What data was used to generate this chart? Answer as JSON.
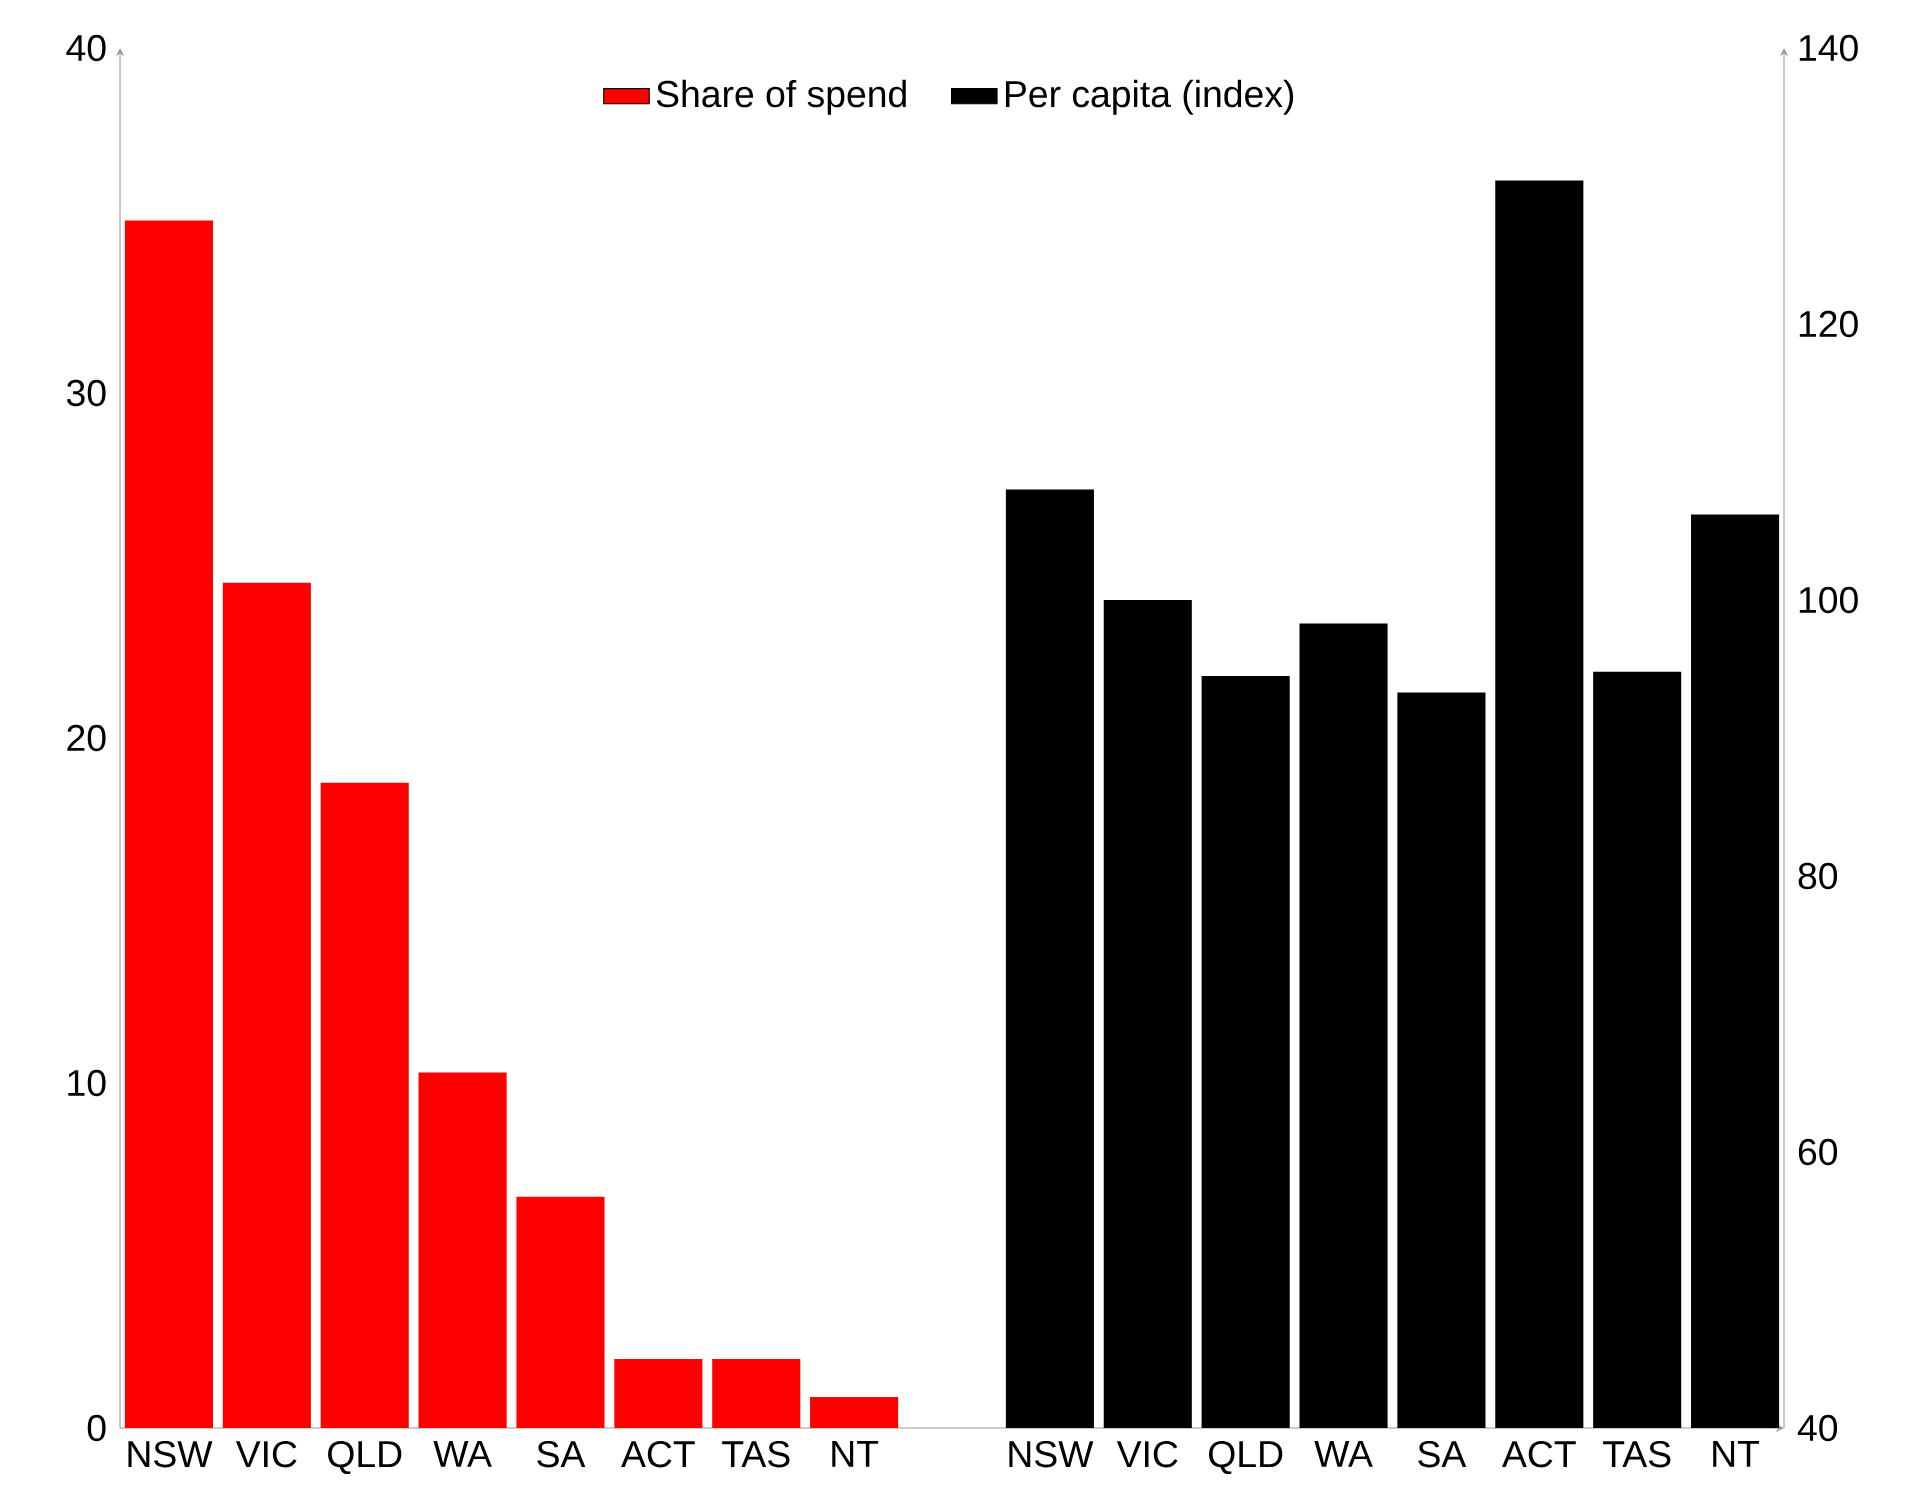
{
  "chart_data": {
    "type": "bar",
    "categories": [
      "NSW",
      "VIC",
      "QLD",
      "WA",
      "SA",
      "ACT",
      "TAS",
      "NT",
      null,
      "NSW",
      "VIC",
      "QLD",
      "WA",
      "SA",
      "ACT",
      "TAS",
      "NT"
    ],
    "series": [
      {
        "name": "Share of spend",
        "color": "#ff0000",
        "values": [
          35,
          24.5,
          18.7,
          10.3,
          6.7,
          2,
          2,
          0.9,
          null,
          null,
          null,
          null,
          null,
          null,
          null,
          null,
          null
        ]
      },
      {
        "name": "Per capita (index)",
        "color": "#000000",
        "axis": "y2",
        "values": [
          null,
          null,
          null,
          null,
          null,
          null,
          null,
          null,
          null,
          108,
          100,
          94.5,
          98.3,
          93.3,
          130.4,
          94.8,
          106.2
        ]
      }
    ],
    "ylim": [
      0,
      40
    ],
    "yticks": [
      0,
      10,
      20,
      30,
      40
    ],
    "y2lim": [
      40,
      140
    ],
    "y2ticks": [
      40,
      60,
      80,
      100,
      120,
      140
    ],
    "legend": "top"
  }
}
